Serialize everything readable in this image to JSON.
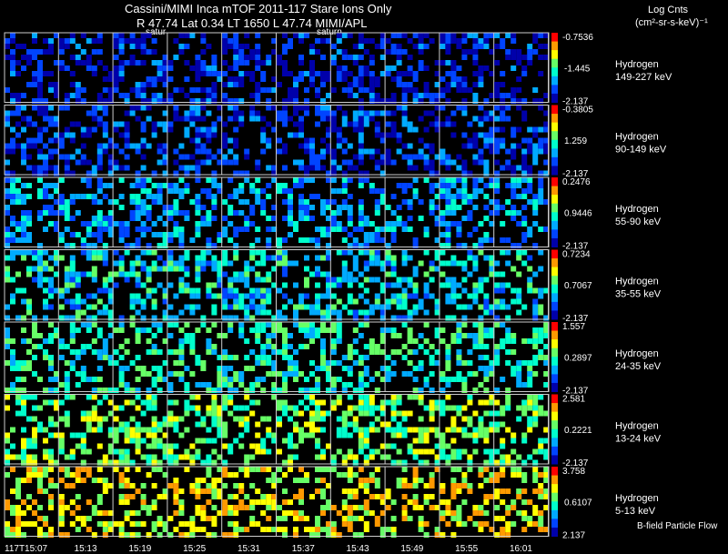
{
  "header": {
    "line1": "Cassini/MIMI Inca mTOF  2011-117   Stare   Ions Only",
    "line2": "R        47.74 Lat 0.34 LT 1650 L        47.74  MIMI/APL",
    "colorbar_title": "Log Cnts",
    "colorbar_units": "(cm²-sr-s-keV)⁻¹",
    "planet_labels": [
      "satur",
      "saturn"
    ],
    "footer_note": "B-field Particle Flow"
  },
  "chart_data": {
    "type": "heatmap",
    "title": "Cassini/MIMI Inca mTOF  2011-117   Stare   Ions Only",
    "x_tick_labels": [
      "117T15:07",
      "15:13",
      "15:19",
      "15:25",
      "15:31",
      "15:37",
      "15:43",
      "15:49",
      "15:55",
      "16:01"
    ],
    "rows": [
      {
        "species": "Hydrogen",
        "energy": "149-227 keV",
        "scale_max": "-0.7536",
        "scale_mid": "-1.445",
        "scale_min": "-2.137",
        "level": 0.12
      },
      {
        "species": "Hydrogen",
        "energy": "90-149 keV",
        "scale_max": "-0.3805",
        "scale_mid": "1.259",
        "scale_min": "-2.137",
        "level": 0.15
      },
      {
        "species": "Hydrogen",
        "energy": "55-90 keV",
        "scale_max": "0.2476",
        "scale_mid": "0.9446",
        "scale_min": "-2.137",
        "level": 0.3
      },
      {
        "species": "Hydrogen",
        "energy": "35-55 keV",
        "scale_max": "0.7234",
        "scale_mid": "0.7067",
        "scale_min": "-2.137",
        "level": 0.38
      },
      {
        "species": "Hydrogen",
        "energy": "24-35 keV",
        "scale_max": "1.557",
        "scale_mid": "0.2897",
        "scale_min": "-2.137",
        "level": 0.45
      },
      {
        "species": "Hydrogen",
        "energy": "13-24 keV",
        "scale_max": "2.581",
        "scale_mid": "0.2221",
        "scale_min": "-2.137",
        "level": 0.55
      },
      {
        "species": "Hydrogen",
        "energy": "5-13 keV",
        "scale_max": "3.758",
        "scale_mid": "0.6107",
        "scale_min": "2.137",
        "level": 0.68
      }
    ],
    "colorscale": [
      "#0000aa",
      "#0044ff",
      "#00aaff",
      "#00ffcc",
      "#66ff66",
      "#ffff00",
      "#ff9900",
      "#ff0000"
    ]
  }
}
